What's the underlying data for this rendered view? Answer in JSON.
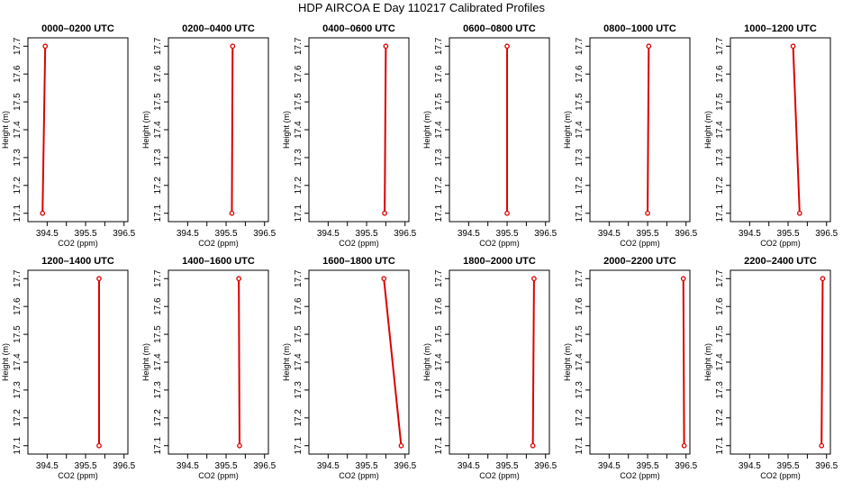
{
  "figure": {
    "title": "HDP AIRCOA E  Day 110217  Calibrated Profiles"
  },
  "colors": {
    "profile": "#dd0000",
    "axis": "#000000"
  },
  "chart_data": [
    {
      "type": "line",
      "title": "0000–0200 UTC",
      "xlabel": "CO2 (ppm)",
      "ylabel": "Height (m)",
      "xlim": [
        394.0,
        396.6
      ],
      "ylim": [
        17.07,
        17.73
      ],
      "xticks": [
        "394.5",
        "395.5",
        "396.5"
      ],
      "xticks_minor": [
        "395",
        "396"
      ],
      "yticks": [
        "17.1",
        "17.2",
        "17.3",
        "17.4",
        "17.5",
        "17.6",
        "17.7"
      ],
      "grid": false,
      "legend": "none",
      "x": [
        394.38,
        394.45
      ],
      "y": [
        17.1,
        17.7
      ]
    },
    {
      "type": "line",
      "title": "0200–0400 UTC",
      "xlabel": "CO2 (ppm)",
      "ylabel": "Height (m)",
      "xlim": [
        394.0,
        396.6
      ],
      "ylim": [
        17.07,
        17.73
      ],
      "xticks": [
        "394.5",
        "395.5",
        "396.5"
      ],
      "xticks_minor": [
        "395",
        "396"
      ],
      "yticks": [
        "17.1",
        "17.2",
        "17.3",
        "17.4",
        "17.5",
        "17.6",
        "17.7"
      ],
      "grid": false,
      "legend": "none",
      "x": [
        395.65,
        395.67
      ],
      "y": [
        17.1,
        17.7
      ]
    },
    {
      "type": "line",
      "title": "0400–0600 UTC",
      "xlabel": "CO2 (ppm)",
      "ylabel": "Height (m)",
      "xlim": [
        394.0,
        396.6
      ],
      "ylim": [
        17.07,
        17.73
      ],
      "xticks": [
        "394.5",
        "395.5",
        "396.5"
      ],
      "xticks_minor": [
        "395",
        "396"
      ],
      "yticks": [
        "17.1",
        "17.2",
        "17.3",
        "17.4",
        "17.5",
        "17.6",
        "17.7"
      ],
      "grid": false,
      "legend": "none",
      "x": [
        395.97,
        396.0
      ],
      "y": [
        17.1,
        17.7
      ]
    },
    {
      "type": "line",
      "title": "0600–0800 UTC",
      "xlabel": "CO2 (ppm)",
      "ylabel": "Height (m)",
      "xlim": [
        394.0,
        396.6
      ],
      "ylim": [
        17.07,
        17.73
      ],
      "xticks": [
        "394.5",
        "395.5",
        "396.5"
      ],
      "xticks_minor": [
        "395",
        "396"
      ],
      "yticks": [
        "17.1",
        "17.2",
        "17.3",
        "17.4",
        "17.5",
        "17.6",
        "17.7"
      ],
      "grid": false,
      "legend": "none",
      "x": [
        395.5,
        395.5
      ],
      "y": [
        17.1,
        17.7
      ]
    },
    {
      "type": "line",
      "title": "0800–1000 UTC",
      "xlabel": "CO2 (ppm)",
      "ylabel": "Height (m)",
      "xlim": [
        394.0,
        396.6
      ],
      "ylim": [
        17.07,
        17.73
      ],
      "xticks": [
        "394.5",
        "395.5",
        "396.5"
      ],
      "xticks_minor": [
        "395",
        "396"
      ],
      "yticks": [
        "17.1",
        "17.2",
        "17.3",
        "17.4",
        "17.5",
        "17.6",
        "17.7"
      ],
      "grid": false,
      "legend": "none",
      "x": [
        395.5,
        395.53
      ],
      "y": [
        17.1,
        17.7
      ]
    },
    {
      "type": "line",
      "title": "1000–1200 UTC",
      "xlabel": "CO2 (ppm)",
      "ylabel": "Height (m)",
      "xlim": [
        394.0,
        396.6
      ],
      "ylim": [
        17.07,
        17.73
      ],
      "xticks": [
        "394.5",
        "395.5",
        "396.5"
      ],
      "xticks_minor": [
        "395",
        "396"
      ],
      "yticks": [
        "17.1",
        "17.2",
        "17.3",
        "17.4",
        "17.5",
        "17.6",
        "17.7"
      ],
      "grid": false,
      "legend": "none",
      "x": [
        395.8,
        395.63
      ],
      "y": [
        17.1,
        17.7
      ]
    },
    {
      "type": "line",
      "title": "1200–1400 UTC",
      "xlabel": "CO2 (ppm)",
      "ylabel": "Height (m)",
      "xlim": [
        394.0,
        396.6
      ],
      "ylim": [
        17.07,
        17.73
      ],
      "xticks": [
        "394.5",
        "395.5",
        "396.5"
      ],
      "xticks_minor": [
        "395",
        "396"
      ],
      "yticks": [
        "17.1",
        "17.2",
        "17.3",
        "17.4",
        "17.5",
        "17.6",
        "17.7"
      ],
      "grid": false,
      "legend": "none",
      "x": [
        395.85,
        395.85
      ],
      "y": [
        17.1,
        17.7
      ]
    },
    {
      "type": "line",
      "title": "1400–1600 UTC",
      "xlabel": "CO2 (ppm)",
      "ylabel": "Height (m)",
      "xlim": [
        394.0,
        396.6
      ],
      "ylim": [
        17.07,
        17.73
      ],
      "xticks": [
        "394.5",
        "395.5",
        "396.5"
      ],
      "xticks_minor": [
        "395",
        "396"
      ],
      "yticks": [
        "17.1",
        "17.2",
        "17.3",
        "17.4",
        "17.5",
        "17.6",
        "17.7"
      ],
      "grid": false,
      "legend": "none",
      "x": [
        395.85,
        395.83
      ],
      "y": [
        17.1,
        17.7
      ]
    },
    {
      "type": "line",
      "title": "1600–1800 UTC",
      "xlabel": "CO2 (ppm)",
      "ylabel": "Height (m)",
      "xlim": [
        394.0,
        396.6
      ],
      "ylim": [
        17.07,
        17.73
      ],
      "xticks": [
        "394.5",
        "395.5",
        "396.5"
      ],
      "xticks_minor": [
        "395",
        "396"
      ],
      "yticks": [
        "17.1",
        "17.2",
        "17.3",
        "17.4",
        "17.5",
        "17.6",
        "17.7"
      ],
      "grid": false,
      "legend": "none",
      "x": [
        396.4,
        395.95
      ],
      "y": [
        17.1,
        17.7
      ]
    },
    {
      "type": "line",
      "title": "1800–2000 UTC",
      "xlabel": "CO2 (ppm)",
      "ylabel": "Height (m)",
      "xlim": [
        394.0,
        396.6
      ],
      "ylim": [
        17.07,
        17.73
      ],
      "xticks": [
        "394.5",
        "395.5",
        "396.5"
      ],
      "xticks_minor": [
        "395",
        "396"
      ],
      "yticks": [
        "17.1",
        "17.2",
        "17.3",
        "17.4",
        "17.5",
        "17.6",
        "17.7"
      ],
      "grid": false,
      "legend": "none",
      "x": [
        396.17,
        396.2
      ],
      "y": [
        17.1,
        17.7
      ]
    },
    {
      "type": "line",
      "title": "2000–2200 UTC",
      "xlabel": "CO2 (ppm)",
      "ylabel": "Height (m)",
      "xlim": [
        394.0,
        396.6
      ],
      "ylim": [
        17.07,
        17.73
      ],
      "xticks": [
        "394.5",
        "395.5",
        "396.5"
      ],
      "xticks_minor": [
        "395",
        "396"
      ],
      "yticks": [
        "17.1",
        "17.2",
        "17.3",
        "17.4",
        "17.5",
        "17.6",
        "17.7"
      ],
      "grid": false,
      "legend": "none",
      "x": [
        396.45,
        396.43
      ],
      "y": [
        17.1,
        17.7
      ]
    },
    {
      "type": "line",
      "title": "2200–2400 UTC",
      "xlabel": "CO2 (ppm)",
      "ylabel": "Height (m)",
      "xlim": [
        394.0,
        396.6
      ],
      "ylim": [
        17.07,
        17.73
      ],
      "xticks": [
        "394.5",
        "395.5",
        "396.5"
      ],
      "xticks_minor": [
        "395",
        "396"
      ],
      "yticks": [
        "17.1",
        "17.2",
        "17.3",
        "17.4",
        "17.5",
        "17.6",
        "17.7"
      ],
      "grid": false,
      "legend": "none",
      "x": [
        396.37,
        396.4
      ],
      "y": [
        17.1,
        17.7
      ]
    }
  ]
}
